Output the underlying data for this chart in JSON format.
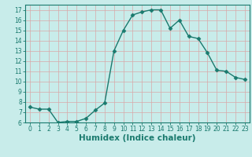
{
  "x": [
    0,
    1,
    2,
    3,
    4,
    5,
    6,
    7,
    8,
    9,
    10,
    11,
    12,
    13,
    14,
    15,
    16,
    17,
    18,
    19,
    20,
    21,
    22,
    23
  ],
  "y": [
    7.5,
    7.3,
    7.3,
    6.0,
    6.1,
    6.1,
    6.4,
    7.2,
    7.9,
    13.0,
    15.0,
    16.5,
    16.8,
    17.0,
    17.0,
    15.2,
    16.0,
    14.4,
    14.2,
    12.8,
    11.1,
    11.0,
    10.4,
    10.2
  ],
  "line_color": "#1a7a6e",
  "marker": "D",
  "markersize": 2.5,
  "linewidth": 1.0,
  "bg_color": "#c8ecea",
  "grid_color": "#d8a8a8",
  "xlabel": "Humidex (Indice chaleur)",
  "ylim": [
    6,
    17.5
  ],
  "xlim": [
    -0.5,
    23.5
  ],
  "yticks": [
    6,
    7,
    8,
    9,
    10,
    11,
    12,
    13,
    14,
    15,
    16,
    17
  ],
  "xticks": [
    0,
    1,
    2,
    3,
    4,
    5,
    6,
    7,
    8,
    9,
    10,
    11,
    12,
    13,
    14,
    15,
    16,
    17,
    18,
    19,
    20,
    21,
    22,
    23
  ],
  "tick_fontsize": 5.5,
  "xlabel_fontsize": 7.5
}
